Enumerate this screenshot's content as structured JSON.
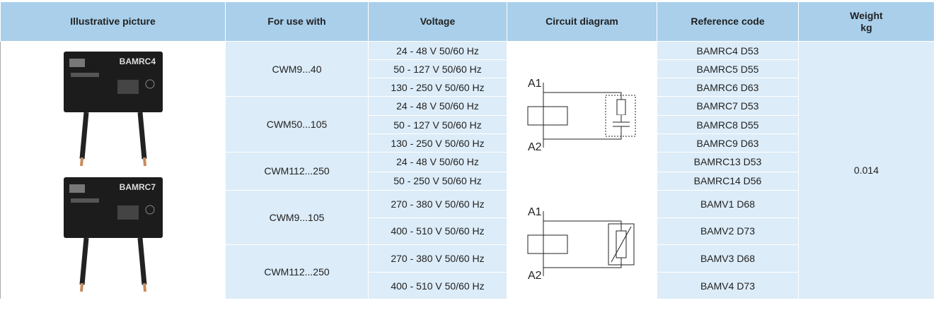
{
  "header": {
    "columns": [
      "Illustrative picture",
      "For use with",
      "Voltage",
      "Circuit diagram",
      "Reference code",
      "Weight\nkg"
    ]
  },
  "pictures": [
    {
      "label": "BAMRC4"
    },
    {
      "label": "BAMRC7"
    }
  ],
  "weight": 0.014,
  "sections": [
    {
      "diagram": {
        "top": "A1",
        "bottom": "A2"
      },
      "groups": [
        {
          "use_with": "CWM9...40",
          "rows": [
            {
              "voltage": "24 - 48 V 50/60 Hz",
              "reference": "BAMRC4 D53"
            },
            {
              "voltage": "50 - 127 V 50/60 Hz",
              "reference": "BAMRC5 D55"
            },
            {
              "voltage": "130 - 250 V 50/60 Hz",
              "reference": "BAMRC6 D63"
            }
          ]
        },
        {
          "use_with": "CWM50...105",
          "rows": [
            {
              "voltage": "24 - 48 V 50/60 Hz",
              "reference": "BAMRC7 D53"
            },
            {
              "voltage": "50 - 127 V 50/60 Hz",
              "reference": "BAMRC8 D55"
            },
            {
              "voltage": "130 - 250 V 50/60 Hz",
              "reference": "BAMRC9 D63"
            }
          ]
        },
        {
          "use_with": "CWM112...250",
          "rows": [
            {
              "voltage": "24 - 48 V 50/60 Hz",
              "reference": "BAMRC13 D53"
            },
            {
              "voltage": "50 - 250 V 50/60 Hz",
              "reference": "BAMRC14 D56"
            }
          ]
        }
      ]
    },
    {
      "diagram": {
        "top": "A1",
        "bottom": "A2"
      },
      "groups": [
        {
          "use_with": "CWM9...105",
          "rows": [
            {
              "voltage": "270 - 380 V 50/60 Hz",
              "reference": "BAMV1 D68"
            },
            {
              "voltage": "400 - 510 V 50/60 Hz",
              "reference": "BAMV2 D73"
            }
          ]
        },
        {
          "use_with": "CWM112...250",
          "rows": [
            {
              "voltage": "270 - 380 V 50/60 Hz",
              "reference": "BAMV3 D68"
            },
            {
              "voltage": "400 - 510 V 50/60 Hz",
              "reference": "BAMV4 D73"
            }
          ]
        }
      ]
    }
  ]
}
